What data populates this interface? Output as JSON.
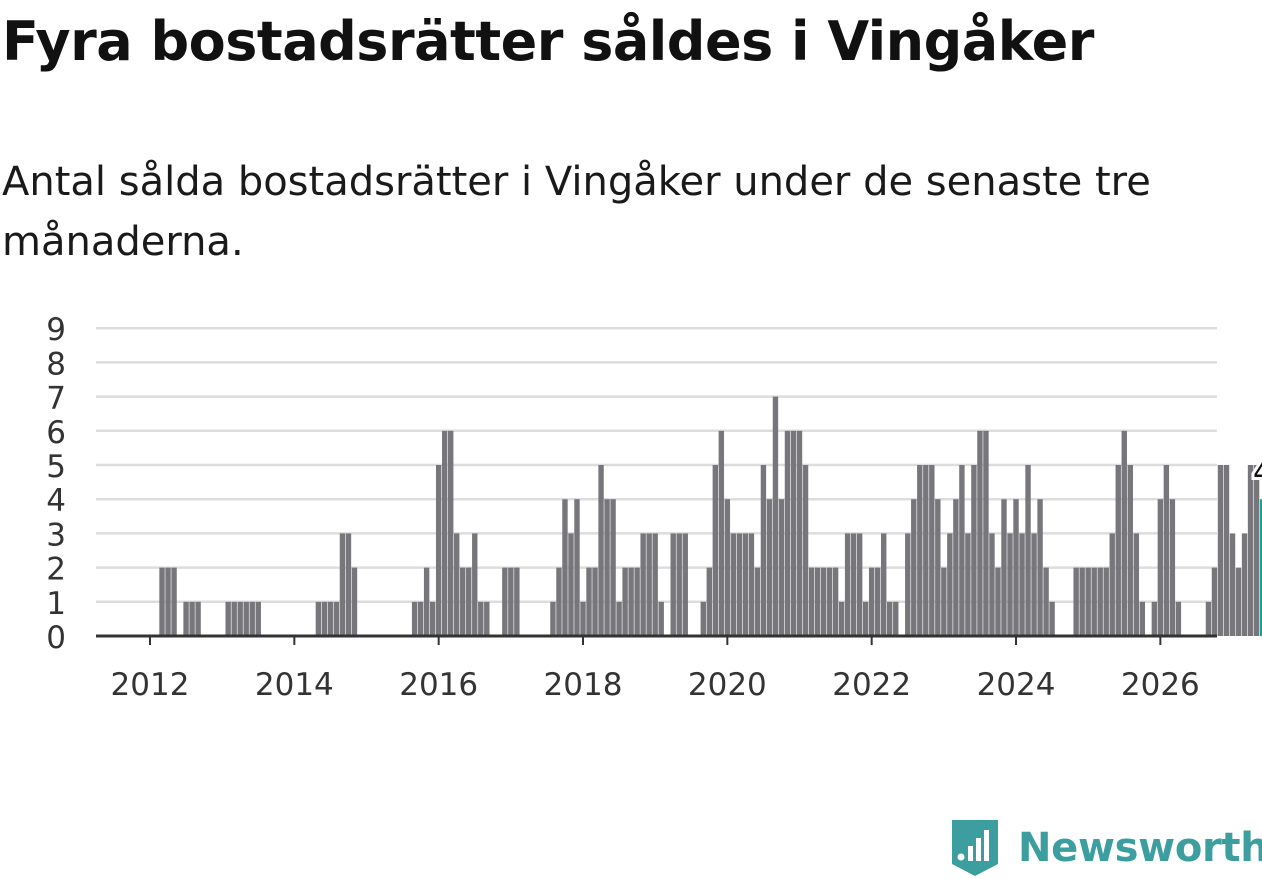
{
  "title": "Fyra bostadsrätter såldes i Vingåker",
  "subtitle": "Antal sålda bostadsrätter i Vingåker under de senaste tre månaderna.",
  "brand": {
    "name": "Newsworthy",
    "icon": "newsworthy-logo-icon",
    "color": "#3c9e9e"
  },
  "chart_data": {
    "type": "bar",
    "title": "",
    "xlabel": "",
    "ylabel": "",
    "ylim": [
      0,
      9
    ],
    "yticks": [
      "0",
      "1",
      "2",
      "3",
      "4",
      "5",
      "6",
      "7",
      "8",
      "9"
    ],
    "xticks": [
      "2012",
      "2014",
      "2016",
      "2018",
      "2020",
      "2022",
      "2024",
      "2026"
    ],
    "grid": true,
    "start_month": "2011-01",
    "unit": "months",
    "highlight_value": "4",
    "colors": {
      "bar": "#77767b",
      "highlight": "#1a9e96",
      "grid": "#dddddd",
      "axis": "#333333"
    },
    "values": [
      0,
      0,
      0,
      0,
      0,
      0,
      0,
      0,
      0,
      0,
      0,
      0,
      0,
      0,
      2,
      2,
      2,
      0,
      1,
      1,
      1,
      0,
      0,
      0,
      0,
      1,
      1,
      1,
      1,
      1,
      1,
      0,
      0,
      0,
      0,
      0,
      0,
      0,
      0,
      0,
      1,
      1,
      1,
      1,
      3,
      3,
      2,
      0,
      0,
      0,
      0,
      0,
      0,
      0,
      0,
      0,
      1,
      1,
      2,
      1,
      5,
      6,
      6,
      3,
      2,
      2,
      3,
      1,
      1,
      0,
      0,
      2,
      2,
      2,
      0,
      0,
      0,
      0,
      0,
      1,
      2,
      4,
      3,
      4,
      1,
      2,
      2,
      5,
      4,
      4,
      1,
      2,
      2,
      2,
      3,
      3,
      3,
      1,
      0,
      3,
      3,
      3,
      0,
      0,
      1,
      2,
      5,
      6,
      4,
      3,
      3,
      3,
      3,
      2,
      5,
      4,
      7,
      4,
      6,
      6,
      6,
      5,
      2,
      2,
      2,
      2,
      2,
      1,
      3,
      3,
      3,
      1,
      2,
      2,
      3,
      1,
      1,
      0,
      3,
      4,
      5,
      5,
      5,
      4,
      2,
      3,
      4,
      5,
      3,
      5,
      6,
      6,
      3,
      2,
      4,
      3,
      4,
      3,
      5,
      3,
      4,
      2,
      1,
      0,
      0,
      0,
      2,
      2,
      2,
      2,
      2,
      2,
      3,
      5,
      6,
      5,
      3,
      1,
      0,
      1,
      4,
      5,
      4,
      1,
      0,
      0,
      0,
      0,
      1,
      2,
      5,
      5,
      3,
      2,
      3,
      5,
      5,
      4
    ]
  }
}
